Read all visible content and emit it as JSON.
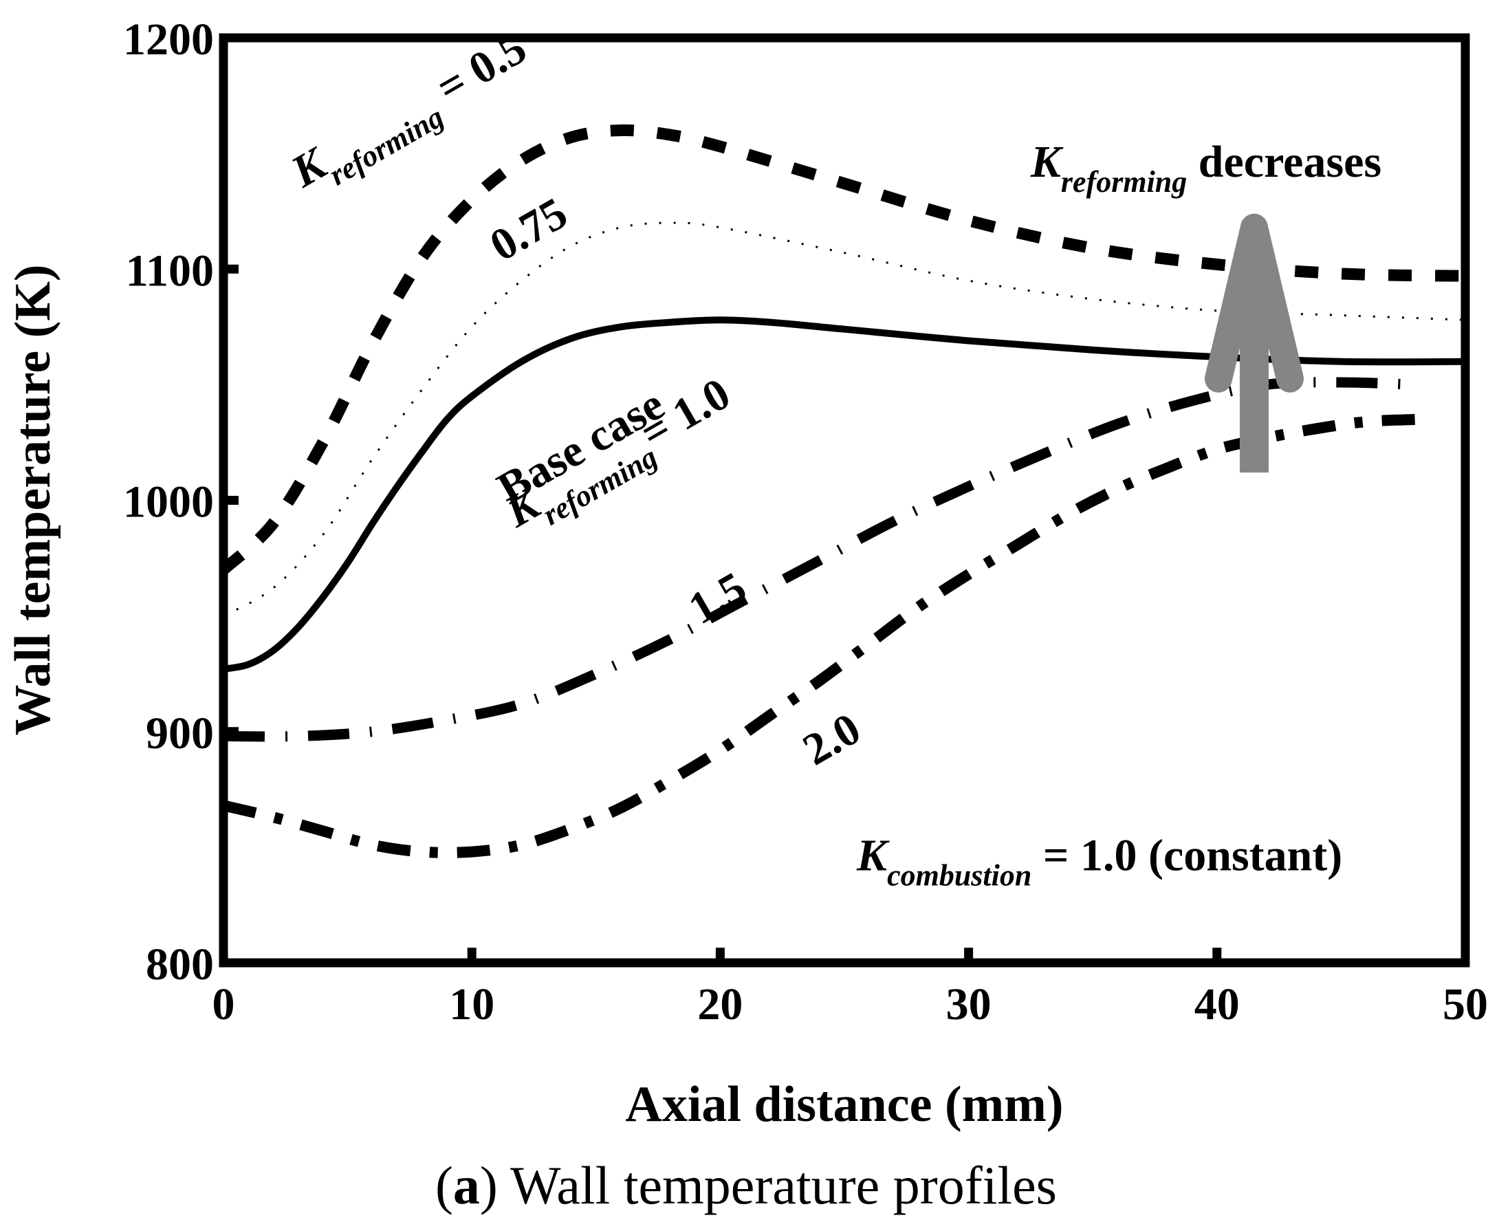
{
  "chart_data": {
    "type": "line",
    "title": "",
    "xlabel": "Axial distance (mm)",
    "ylabel": "Wall temperature (K)",
    "xlim": [
      0,
      50
    ],
    "ylim": [
      800,
      1200
    ],
    "xticks": [
      0,
      10,
      20,
      30,
      40,
      50
    ],
    "yticks": [
      800,
      900,
      1000,
      1100,
      1200
    ],
    "grid": false,
    "caption": {
      "bold": "a",
      "rest": " Wall temperature profiles"
    },
    "series": [
      {
        "name": "K_reforming = 0.5",
        "style": "dashed",
        "x": [
          0,
          2,
          4,
          6,
          8,
          10,
          12,
          14,
          16,
          18,
          20,
          25,
          30,
          35,
          40,
          45,
          50
        ],
        "y": [
          970,
          990,
          1025,
          1068,
          1105,
          1130,
          1147,
          1157,
          1160,
          1158,
          1153,
          1137,
          1121,
          1109,
          1102,
          1098,
          1097
        ]
      },
      {
        "name": "0.75",
        "style": "dotted",
        "x": [
          0,
          2,
          4,
          6,
          8,
          10,
          12,
          14,
          16,
          18,
          20,
          25,
          30,
          35,
          40,
          45,
          50
        ],
        "y": [
          950,
          962,
          985,
          1018,
          1048,
          1075,
          1095,
          1110,
          1118,
          1120,
          1118,
          1107,
          1095,
          1087,
          1082,
          1080,
          1078
        ]
      },
      {
        "name": "Base case K_reforming = 1.0",
        "style": "solid",
        "x": [
          0,
          1,
          2,
          3,
          4,
          5,
          6,
          7,
          8,
          9,
          10,
          12,
          14,
          16,
          18,
          20,
          22,
          25,
          30,
          35,
          40,
          45,
          50
        ],
        "y": [
          927,
          929,
          935,
          945,
          958,
          973,
          990,
          1006,
          1021,
          1035,
          1045,
          1060,
          1070,
          1075,
          1077,
          1078,
          1077,
          1074,
          1069,
          1065,
          1062,
          1060,
          1060
        ]
      },
      {
        "name": "1.5",
        "style": "dash-dot",
        "x": [
          0,
          3,
          6,
          9,
          12,
          15,
          18,
          21,
          24,
          27,
          30,
          33,
          36,
          39,
          42,
          45,
          48
        ],
        "y": [
          898,
          898,
          900,
          905,
          912,
          925,
          940,
          957,
          974,
          991,
          1006,
          1020,
          1033,
          1043,
          1050,
          1051,
          1050
        ]
      },
      {
        "name": "2.0",
        "style": "dash-dot-dot",
        "x": [
          0,
          2,
          4,
          6,
          8,
          10,
          12,
          14,
          16,
          18,
          20,
          22,
          24,
          26,
          28,
          30,
          32,
          34,
          36,
          38,
          40,
          42,
          44,
          46,
          48
        ],
        "y": [
          868,
          863,
          857,
          851,
          848,
          848,
          851,
          858,
          867,
          879,
          892,
          907,
          922,
          938,
          954,
          968,
          981,
          994,
          1005,
          1014,
          1022,
          1027,
          1031,
          1034,
          1035
        ]
      }
    ],
    "annotations": {
      "k05": {
        "k": "K",
        "sub": "reforming",
        "eq": " = 0.5",
        "x": 3.2,
        "y": 1135
      },
      "k075": {
        "text": "0.75",
        "x": 11.2,
        "y": 1103
      },
      "base": {
        "text": "Base case",
        "x": 11.5,
        "y": 998
      },
      "k10": {
        "k": "K",
        "sub": "reforming",
        "eq": "= 1.0",
        "x": 11.8,
        "y": 988
      },
      "k15": {
        "text": "1.5",
        "x": 19.2,
        "y": 946
      },
      "k20": {
        "text": "2.0",
        "x": 23.8,
        "y": 885
      },
      "decreases": {
        "k": "K",
        "sub": "reforming",
        "word": " decreases",
        "x": 32.5,
        "y": 1140
      },
      "combustion": {
        "k": "K",
        "sub": "combustion",
        "eq": " = 1.0 (constant)",
        "x": 25.5,
        "y": 840
      }
    },
    "arrow": {
      "direction": "up",
      "label": "K_reforming decreases",
      "color": "#858585"
    }
  }
}
